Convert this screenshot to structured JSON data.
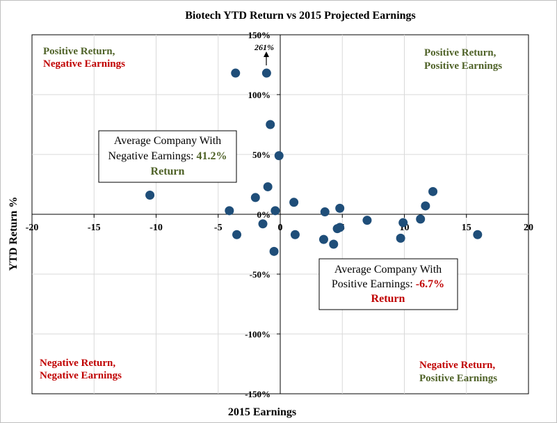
{
  "chart_data": {
    "type": "scatter",
    "title": "Biotech YTD Return vs 2015 Projected Earnings",
    "xlabel": "2015 Earnings",
    "ylabel": "YTD Return %",
    "xlim": [
      -20,
      20
    ],
    "ylim": [
      -150,
      150
    ],
    "x_ticks": [
      -20,
      -15,
      -10,
      -5,
      0,
      5,
      10,
      15,
      20
    ],
    "x_tick_labels": [
      "-20",
      "-15",
      "-10",
      "-5",
      "0",
      "5",
      "10",
      "15",
      "20"
    ],
    "y_ticks": [
      -150,
      -100,
      -50,
      0,
      50,
      100,
      150
    ],
    "y_tick_labels": [
      "-150%",
      "-100%",
      "-50%",
      "0%",
      "50%",
      "100%",
      "150%"
    ],
    "grid": true,
    "colors": {
      "points": "#1f4e79",
      "green_text": "#4f6228",
      "red_text": "#c00000"
    },
    "points": [
      {
        "x": -10.5,
        "y": 16
      },
      {
        "x": -4.1,
        "y": 3
      },
      {
        "x": -3.6,
        "y": 118
      },
      {
        "x": -3.5,
        "y": -17
      },
      {
        "x": -2.0,
        "y": 14
      },
      {
        "x": -1.4,
        "y": -8
      },
      {
        "x": -1.1,
        "y": 118
      },
      {
        "x": -1.0,
        "y": 23
      },
      {
        "x": -0.8,
        "y": 75
      },
      {
        "x": -0.5,
        "y": -31
      },
      {
        "x": -0.4,
        "y": 3
      },
      {
        "x": -0.1,
        "y": 49
      },
      {
        "x": 1.1,
        "y": 10
      },
      {
        "x": 1.2,
        "y": -17
      },
      {
        "x": 3.5,
        "y": -21
      },
      {
        "x": 3.6,
        "y": 2
      },
      {
        "x": 4.3,
        "y": -25
      },
      {
        "x": 4.6,
        "y": -12
      },
      {
        "x": 4.8,
        "y": -11
      },
      {
        "x": 4.8,
        "y": 5
      },
      {
        "x": 7.0,
        "y": -5
      },
      {
        "x": 9.7,
        "y": -20
      },
      {
        "x": 9.9,
        "y": -7
      },
      {
        "x": 11.3,
        "y": -4
      },
      {
        "x": 11.7,
        "y": 7
      },
      {
        "x": 12.3,
        "y": 19
      },
      {
        "x": 15.9,
        "y": -17
      }
    ],
    "annotations": {
      "arrow_label": "261%",
      "quadrants": {
        "top_left": {
          "line1": "Positive Return,",
          "line2": "Negative Earnings"
        },
        "top_right": {
          "line1": "Positive Return,",
          "line2": "Positive Earnings"
        },
        "bottom_left": {
          "line1": "Negative Return,",
          "line2": "Negative Earnings"
        },
        "bottom_right": {
          "line1": "Negative Return,",
          "line2": "Positive Earnings"
        }
      },
      "negative_box": {
        "line1": "Average Company With",
        "line2_prefix": "Negative Earnings: ",
        "line2_value": "41.2%",
        "line3": "Return"
      },
      "positive_box": {
        "line1": "Average Company With",
        "line2_prefix": "Positive Earnings: ",
        "line2_value": "-6.7%",
        "line3": "Return"
      }
    }
  }
}
